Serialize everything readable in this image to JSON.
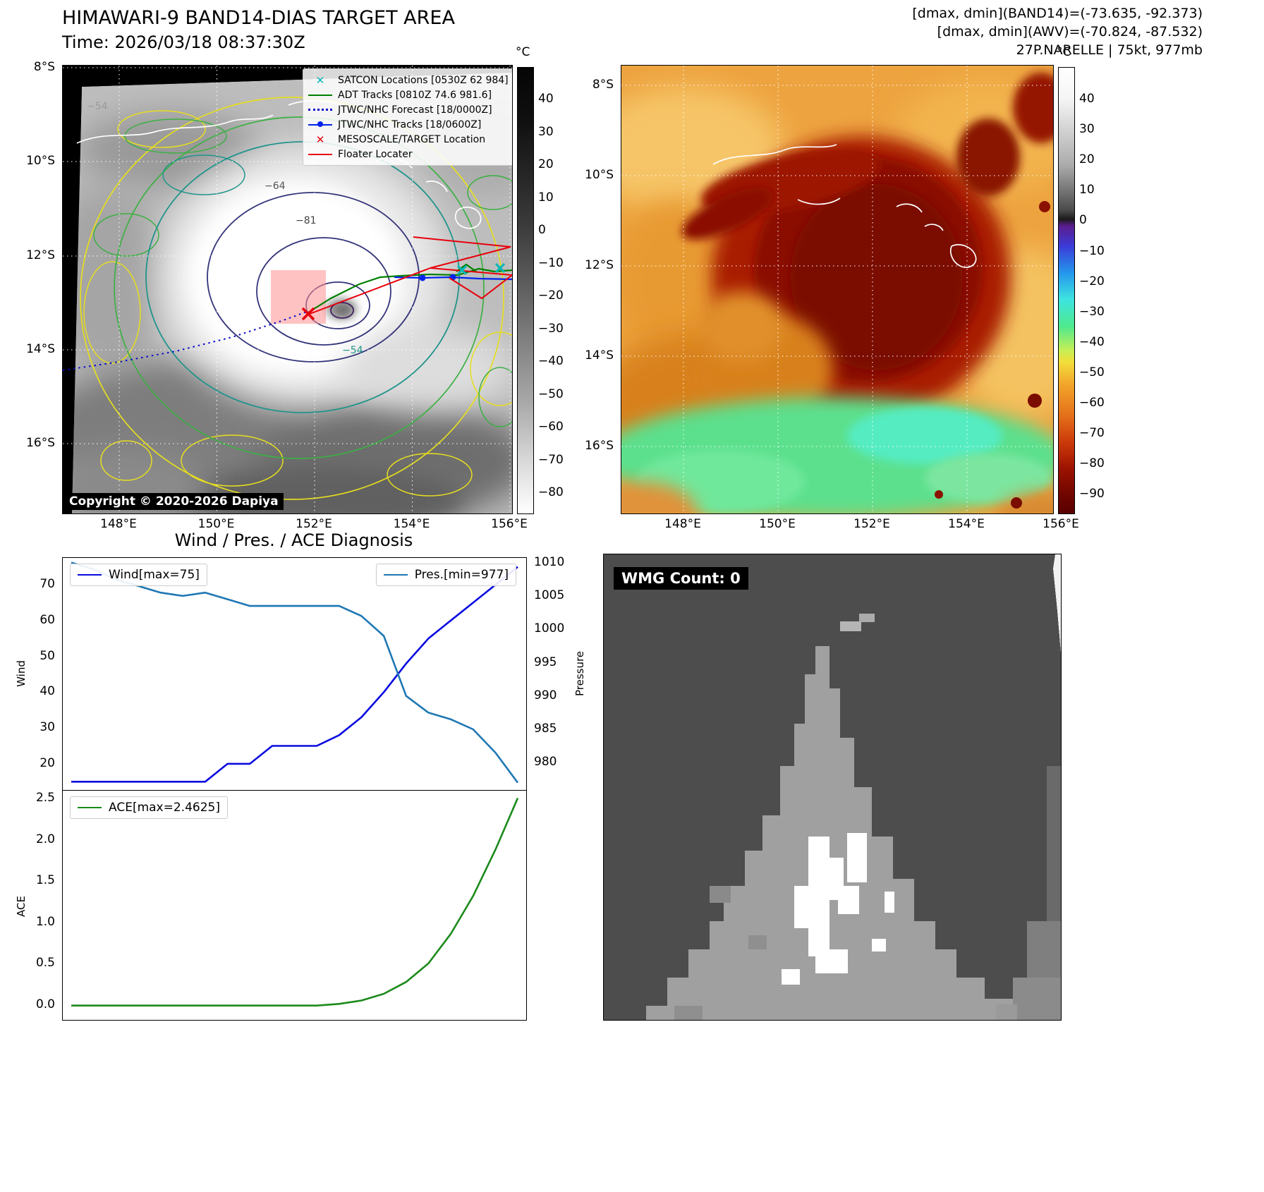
{
  "colors": {
    "wind": "#0a0ae0",
    "pressure": "#1f77b4",
    "ace": "#1b8a1b",
    "satcon": "#00b8b8",
    "adt": "#008000",
    "forecast": "#0808cc",
    "track": "#0022ee",
    "target": "#e8000b",
    "floater": "#e8000b"
  },
  "band14": {
    "title": "HIMAWARI-9 BAND14-DIAS TARGET AREA",
    "time_line": "Time: 2026/03/18 08:37:30Z",
    "copyright": "Copyright © 2020-2026 Dapiya",
    "legend": [
      {
        "label": "SATCON Locations [0530Z 62 984]"
      },
      {
        "label": "ADT Tracks [0810Z 74.6 981.6]"
      },
      {
        "label": "JTWC/NHC Forecast [18/0000Z]"
      },
      {
        "label": "JTWC/NHC Tracks [18/0600Z]"
      },
      {
        "label": "MESOSCALE/TARGET Location"
      },
      {
        "label": "Floater Locater"
      }
    ],
    "contour_labels": [
      "−54",
      "−64",
      "−81",
      "−54"
    ],
    "lat_ticks": [
      "8°S",
      "10°S",
      "12°S",
      "14°S",
      "16°S"
    ],
    "lon_ticks": [
      "148°E",
      "150°E",
      "152°E",
      "154°E",
      "156°E"
    ],
    "colorbar": {
      "unit": "°C",
      "ticks": [
        "40",
        "30",
        "20",
        "10",
        "0",
        "−10",
        "−20",
        "−30",
        "−40",
        "−50",
        "−60",
        "−70",
        "−80"
      ]
    }
  },
  "awv": {
    "stats_line1": "[dmax, dmin](BAND14)=(-73.635, -92.373)",
    "stats_line2": "[dmax, dmin](AWV)=(-70.824, -87.532)",
    "storm_line": "27P.NARELLE | 75kt, 977mb",
    "lat_ticks": [
      "8°S",
      "10°S",
      "12°S",
      "14°S",
      "16°S"
    ],
    "lon_ticks": [
      "148°E",
      "150°E",
      "152°E",
      "154°E",
      "156°E"
    ],
    "colorbar": {
      "unit": "°C",
      "ticks": [
        "40",
        "30",
        "20",
        "10",
        "0",
        "−10",
        "−20",
        "−30",
        "−40",
        "−50",
        "−60",
        "−70",
        "−80",
        "−90"
      ]
    }
  },
  "diagnosis": {
    "title": "Wind / Pres. / ACE Diagnosis",
    "wind_legend": "Wind[max=75]",
    "pres_legend": "Pres.[min=977]",
    "ace_legend": "ACE[max=2.4625]",
    "wind_ylabel": "Wind",
    "pres_ylabel": "Pressure",
    "ace_ylabel": "ACE",
    "wind_yticks": [
      "70",
      "60",
      "50",
      "40",
      "30",
      "20"
    ],
    "pres_yticks": [
      "1010",
      "1005",
      "1000",
      "995",
      "990",
      "985",
      "980"
    ],
    "ace_yticks": [
      "2.5",
      "2.0",
      "1.5",
      "1.0",
      "0.5",
      "0.0"
    ]
  },
  "wmg": {
    "count_label": "WMG Count: 0"
  },
  "chart_data": [
    {
      "type": "line",
      "title": "Wind / Pres. / ACE Diagnosis",
      "x": [
        0,
        1,
        2,
        3,
        4,
        5,
        6,
        7,
        8,
        9,
        10,
        11,
        12,
        13,
        14,
        15,
        16,
        17,
        18,
        19,
        20
      ],
      "series": [
        {
          "name": "Wind[max=75]",
          "axis": "left",
          "color": "#0a0ae0",
          "values": [
            15,
            15,
            15,
            15,
            15,
            15,
            15,
            20,
            20,
            25,
            25,
            25,
            28,
            33,
            40,
            48,
            55,
            60,
            65,
            70,
            75
          ]
        },
        {
          "name": "Pres.[min=977]",
          "axis": "right",
          "color": "#1f77b4",
          "values": [
            1010,
            1009,
            1007.5,
            1006.5,
            1005.5,
            1005,
            1005.5,
            1004.5,
            1003.5,
            1003.5,
            1003.5,
            1003.5,
            1003.5,
            1002,
            999,
            990,
            987.5,
            986.5,
            985,
            981.5,
            977
          ]
        }
      ],
      "ylabel_left": "Wind",
      "ylabel_right": "Pressure",
      "ylim_left": [
        12.5,
        77.5
      ],
      "ylim_right": [
        975.8,
        1010.7
      ],
      "legend_position": "upper-left and upper-right",
      "grid": false
    },
    {
      "type": "line",
      "x": [
        0,
        1,
        2,
        3,
        4,
        5,
        6,
        7,
        8,
        9,
        10,
        11,
        12,
        13,
        14,
        15,
        16,
        17,
        18,
        19,
        20
      ],
      "series": [
        {
          "name": "ACE[max=2.4625]",
          "color": "#1b8a1b",
          "values": [
            0,
            0,
            0,
            0,
            0,
            0,
            0,
            0,
            0,
            0,
            0,
            0,
            0.02,
            0.06,
            0.14,
            0.28,
            0.5,
            0.85,
            1.3,
            1.85,
            2.4625
          ]
        }
      ],
      "ylabel": "ACE",
      "ylim": [
        -0.17,
        2.55
      ],
      "legend_position": "upper-left",
      "grid": false
    }
  ]
}
